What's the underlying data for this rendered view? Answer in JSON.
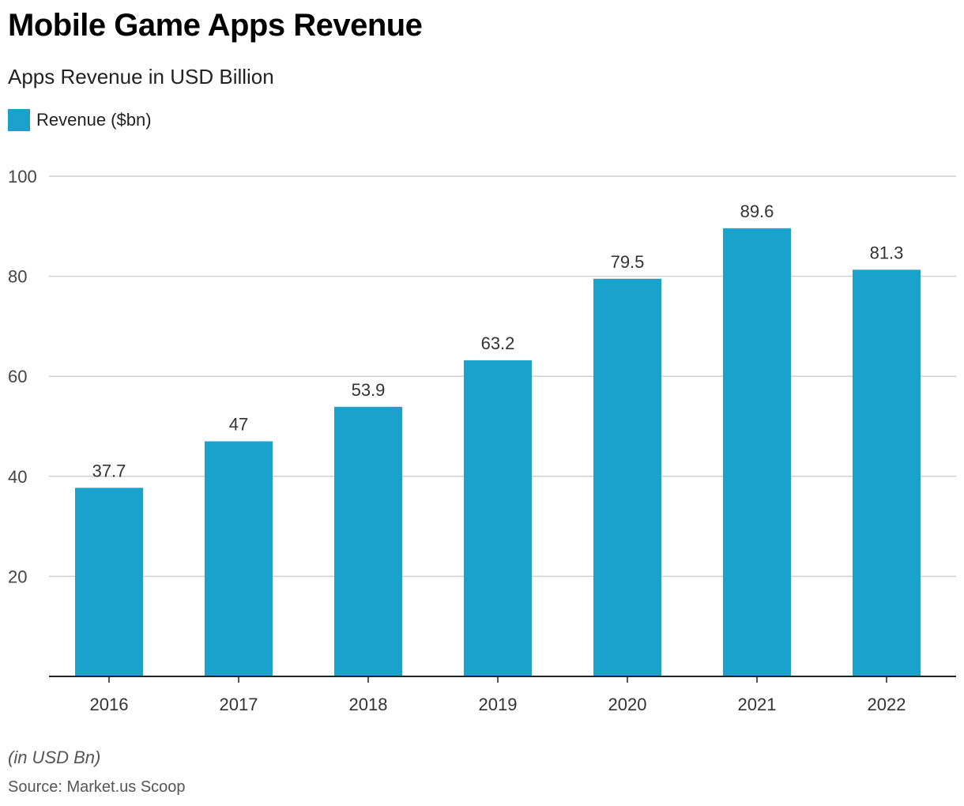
{
  "title": "Mobile Game Apps Revenue",
  "subtitle": "Apps Revenue in USD Billion",
  "note": "(in USD Bn)",
  "source": "Source: Market.us Scoop",
  "colors": {
    "bar": "#1aa1cc",
    "grid": "#d0d0d0",
    "axis": "#222222"
  },
  "chart_data": {
    "type": "bar",
    "title": "Mobile Game Apps Revenue",
    "subtitle": "Apps Revenue in USD Billion",
    "categories": [
      "2016",
      "2017",
      "2018",
      "2019",
      "2020",
      "2021",
      "2022"
    ],
    "series": [
      {
        "name": "Revenue ($bn)",
        "values": [
          37.7,
          47,
          53.9,
          63.2,
          79.5,
          89.6,
          81.3
        ]
      }
    ],
    "data_labels": [
      "37.7",
      "47",
      "53.9",
      "63.2",
      "79.5",
      "89.6",
      "81.3"
    ],
    "yticks": [
      20,
      40,
      60,
      80,
      100
    ],
    "ylim": [
      0,
      100
    ],
    "grid": true,
    "legend": "top-left",
    "xlabel": "",
    "ylabel": ""
  }
}
